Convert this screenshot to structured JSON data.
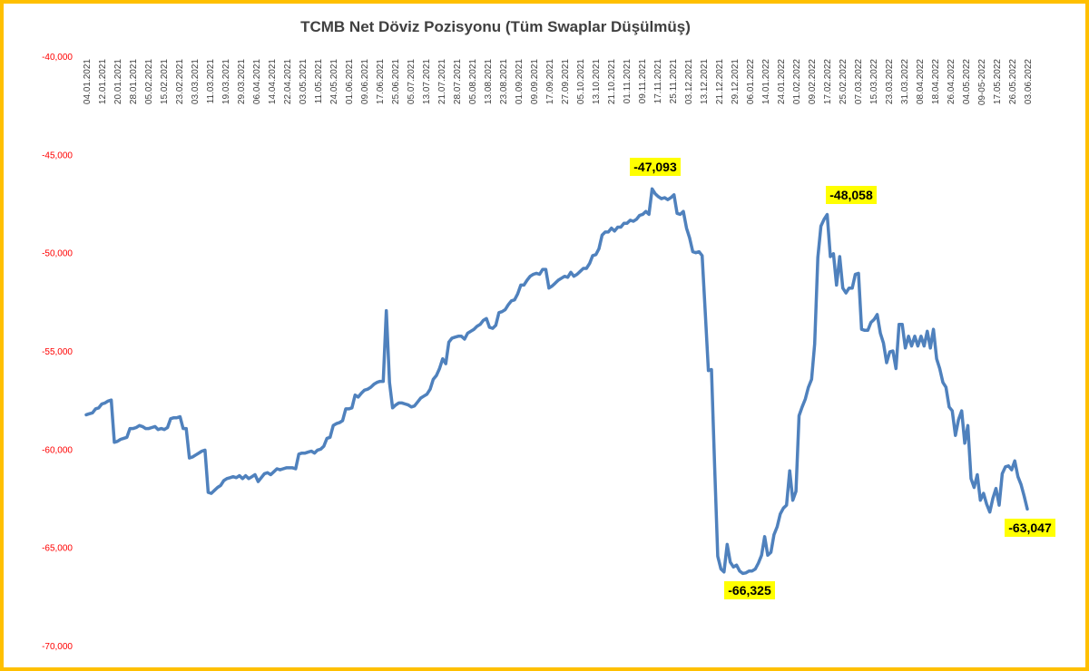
{
  "chart_data": {
    "type": "line",
    "title": "TCMB Net Döviz Pozisyonu (Tüm Swaplar Düşülmüş)",
    "xlabel": "",
    "ylabel": "",
    "ylim": [
      -70000,
      -40000
    ],
    "y_ticks": [
      "-40,000",
      "-45,000",
      "-50,000",
      "-55,000",
      "-60,000",
      "-65,000",
      "-70,000"
    ],
    "y_tick_values": [
      -40000,
      -45000,
      -50000,
      -55000,
      -60000,
      -65000,
      -70000
    ],
    "x_axis_position": "top",
    "x_tick_labels": [
      "04.01.2021",
      "12.01.2021",
      "20.01.2021",
      "28.01.2021",
      "05.02.2021",
      "15.02.2021",
      "23.02.2021",
      "03.03.2021",
      "11.03.2021",
      "19.03.2021",
      "29.03.2021",
      "06.04.2021",
      "14.04.2021",
      "22.04.2021",
      "03.05.2021",
      "11.05.2021",
      "24.05.2021",
      "01.06.2021",
      "09.06.2021",
      "17.06.2021",
      "25.06.2021",
      "05.07.2021",
      "13.07.2021",
      "21.07.2021",
      "28.07.2021",
      "05.08.2021",
      "13.08.2021",
      "23.08.2021",
      "01.09.2021",
      "09.09.2021",
      "17.09.2021",
      "27.09.2021",
      "05.10.2021",
      "13.10.2021",
      "21.10.2021",
      "01.11.2021",
      "09.11.2021",
      "17.11.2021",
      "25.11.2021",
      "03.12.2021",
      "13.12.2021",
      "21.12.2021",
      "29.12.2021",
      "06.01.2022",
      "14.01.2022",
      "24.01.2022",
      "01.02.2022",
      "09.02.2022",
      "17.02.2022",
      "25.02.2022",
      "07.03.2022",
      "15.03.2022",
      "23.03.2022",
      "31.03.2022",
      "08.04.2022",
      "18.04.2022",
      "26.04.2022",
      "04.05.2022",
      "09-05-2022",
      "17.05.2022",
      "26.05.2022",
      "03.06.2022"
    ],
    "grid": false,
    "legend": "none",
    "series_color": "#4f81bd",
    "series": [
      {
        "values": [
          -58250,
          -58200,
          -58150,
          -57950,
          -57900,
          -57700,
          -57650,
          -57550,
          -57500,
          -59650,
          -59600,
          -59500,
          -59450,
          -59400,
          -58950,
          -58950,
          -58900,
          -58800,
          -58850,
          -58950,
          -58950,
          -58900,
          -58850,
          -59000,
          -58950,
          -59000,
          -58900,
          -58450,
          -58400,
          -58400,
          -58350,
          -58950,
          -58950,
          -60450,
          -60400,
          -60300,
          -60200,
          -60100,
          -60050,
          -62200,
          -62250,
          -62100,
          -61950,
          -61850,
          -61600,
          -61500,
          -61450,
          -61400,
          -61450,
          -61350,
          -61500,
          -61350,
          -61500,
          -61400,
          -61300,
          -61650,
          -61450,
          -61250,
          -61200,
          -61300,
          -61150,
          -61000,
          -61050,
          -61000,
          -60950,
          -60950,
          -60950,
          -61000,
          -60250,
          -60200,
          -60200,
          -60150,
          -60100,
          -60200,
          -60050,
          -60000,
          -59850,
          -59450,
          -59400,
          -58800,
          -58700,
          -58650,
          -58550,
          -57950,
          -57950,
          -57900,
          -57250,
          -57350,
          -57150,
          -57000,
          -56950,
          -56850,
          -56700,
          -56600,
          -56550,
          -56550,
          -52950,
          -56600,
          -57900,
          -57750,
          -57650,
          -57650,
          -57700,
          -57750,
          -57850,
          -57800,
          -57600,
          -57400,
          -57300,
          -57200,
          -56950,
          -56450,
          -56250,
          -55900,
          -55400,
          -55650,
          -54550,
          -54350,
          -54300,
          -54250,
          -54250,
          -54400,
          -54100,
          -54000,
          -53900,
          -53750,
          -53650,
          -53450,
          -53350,
          -53800,
          -53850,
          -53700,
          -53050,
          -53000,
          -52900,
          -52650,
          -52450,
          -52400,
          -52100,
          -51650,
          -51650,
          -51400,
          -51200,
          -51100,
          -51050,
          -51100,
          -50850,
          -50850,
          -51800,
          -51700,
          -51550,
          -51400,
          -51300,
          -51200,
          -51250,
          -51000,
          -51200,
          -51100,
          -50950,
          -50800,
          -50800,
          -50550,
          -50150,
          -50100,
          -49800,
          -49100,
          -48950,
          -48950,
          -48750,
          -48900,
          -48700,
          -48700,
          -48500,
          -48500,
          -48350,
          -48400,
          -48300,
          -48100,
          -48050,
          -47900,
          -48050,
          -46750,
          -47000,
          -47150,
          -47250,
          -47200,
          -47300,
          -47200,
          -47050,
          -48000,
          -48050,
          -47900,
          -48750,
          -49250,
          -49950,
          -50000,
          -49950,
          -50150,
          -53000,
          -56000,
          -55950,
          -60900,
          -65450,
          -66100,
          -66250,
          -64850,
          -65750,
          -66000,
          -65900,
          -66200,
          -66325,
          -66300,
          -66200,
          -66200,
          -66100,
          -65800,
          -65400,
          -64450,
          -65400,
          -65250,
          -64350,
          -63950,
          -63300,
          -63000,
          -62850,
          -61100,
          -62600,
          -62150,
          -58300,
          -57850,
          -57450,
          -56850,
          -56450,
          -54650,
          -50250,
          -48650,
          -48300,
          -48058,
          -50200,
          -50050,
          -51650,
          -50200,
          -51800,
          -52050,
          -51800,
          -51800,
          -51100,
          -51050,
          -53900,
          -53950,
          -53950,
          -53550,
          -53400,
          -53150,
          -54100,
          -54600,
          -55600,
          -55050,
          -55000,
          -55900,
          -53650,
          -53650,
          -54850,
          -54250,
          -54750,
          -54250,
          -54750,
          -54250,
          -54750,
          -54000,
          -54850,
          -53900,
          -55400,
          -55900,
          -56600,
          -56850,
          -57850,
          -58050,
          -59300,
          -58500,
          -58050,
          -59700,
          -58800,
          -61500,
          -61950,
          -61300,
          -62600,
          -62250,
          -62800,
          -63200,
          -62500,
          -62000,
          -62850,
          -61250,
          -60900,
          -60850,
          -61050,
          -60600,
          -61400,
          -61800,
          -62400,
          -63047
        ]
      }
    ],
    "annotations": [
      {
        "label": "-47,093",
        "value": -47093
      },
      {
        "label": "-48,058",
        "value": -48058
      },
      {
        "label": "-66,325",
        "value": -66325
      },
      {
        "label": "-63,047",
        "value": -63047
      }
    ],
    "callout_color": "#ffff00",
    "frame_color": "#ffc000"
  }
}
